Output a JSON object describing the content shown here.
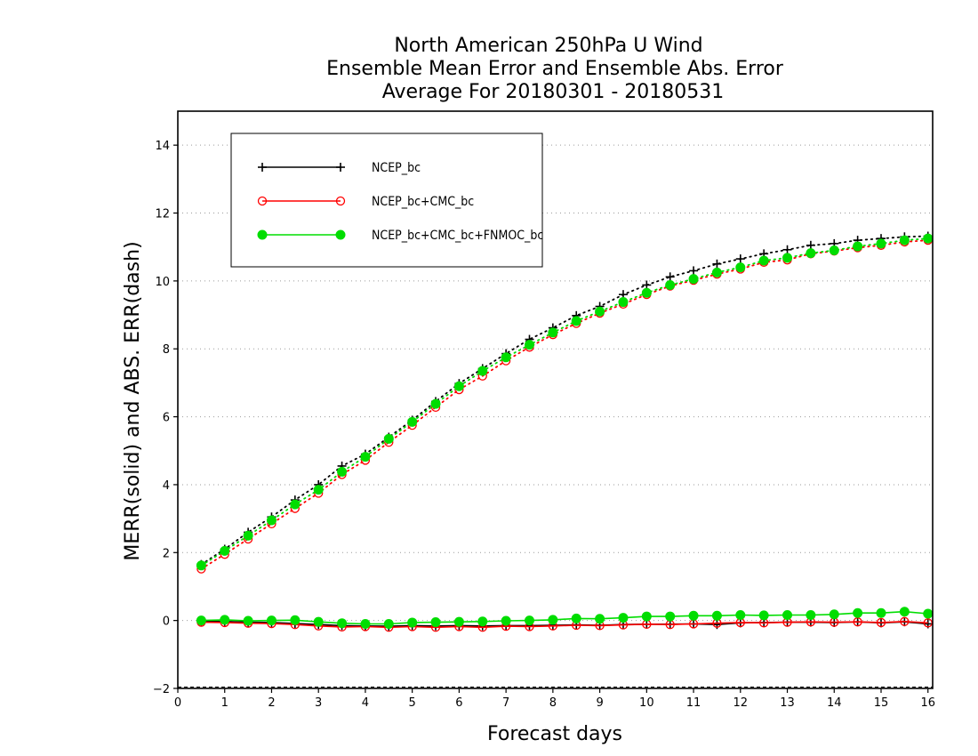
{
  "chart_data": {
    "type": "line",
    "title": [
      "North American 250hPa U Wind",
      "Ensemble Mean Error and Ensemble Abs. Error",
      "Average For 20180301 - 20180531"
    ],
    "xlabel": "Forecast days",
    "ylabel": "MERR(solid) and ABS. ERR(dash)",
    "xlim": [
      0,
      16.1
    ],
    "ylim": [
      -2,
      15
    ],
    "x_ticks": [
      "0",
      "1",
      "2",
      "3",
      "4",
      "5",
      "6",
      "7",
      "8",
      "9",
      "10",
      "11",
      "12",
      "13",
      "14",
      "15",
      "16"
    ],
    "y_ticks": [
      "−2",
      "0",
      "2",
      "4",
      "6",
      "8",
      "10",
      "12",
      "14"
    ],
    "grid": "horizontal dotted",
    "legend_position": "top-left",
    "x": [
      0.5,
      1,
      1.5,
      2,
      2.5,
      3,
      3.5,
      4,
      4.5,
      5,
      5.5,
      6,
      6.5,
      7,
      7.5,
      8,
      8.5,
      9,
      9.5,
      10,
      10.5,
      11,
      11.5,
      12,
      12.5,
      13,
      13.5,
      14,
      14.5,
      15,
      15.5,
      16
    ],
    "series": [
      {
        "name": "NCEP_bc",
        "color": "#000000",
        "marker": "plus",
        "merr": [
          -0.02,
          -0.03,
          -0.05,
          -0.06,
          -0.09,
          -0.12,
          -0.15,
          -0.16,
          -0.17,
          -0.15,
          -0.16,
          -0.15,
          -0.16,
          -0.15,
          -0.15,
          -0.14,
          -0.13,
          -0.14,
          -0.12,
          -0.11,
          -0.11,
          -0.1,
          -0.12,
          -0.07,
          -0.06,
          -0.05,
          -0.05,
          -0.06,
          -0.04,
          -0.07,
          -0.04,
          -0.1
        ],
        "abs_err": [
          1.65,
          2.1,
          2.6,
          3.05,
          3.55,
          4.0,
          4.55,
          4.9,
          5.4,
          5.9,
          6.45,
          6.98,
          7.42,
          7.86,
          8.28,
          8.62,
          8.98,
          9.25,
          9.6,
          9.88,
          10.12,
          10.3,
          10.5,
          10.65,
          10.8,
          10.92,
          11.05,
          11.1,
          11.2,
          11.25,
          11.3,
          11.32
        ]
      },
      {
        "name": "NCEP_bc+CMC_bc",
        "color": "#ff0000",
        "marker": "open-circle",
        "merr": [
          -0.05,
          -0.06,
          -0.08,
          -0.09,
          -0.12,
          -0.16,
          -0.19,
          -0.18,
          -0.2,
          -0.18,
          -0.2,
          -0.18,
          -0.2,
          -0.17,
          -0.18,
          -0.16,
          -0.14,
          -0.15,
          -0.13,
          -0.11,
          -0.12,
          -0.1,
          -0.08,
          -0.06,
          -0.07,
          -0.05,
          -0.04,
          -0.05,
          -0.04,
          -0.06,
          -0.03,
          -0.07
        ],
        "abs_err": [
          1.52,
          1.95,
          2.4,
          2.85,
          3.3,
          3.75,
          4.3,
          4.72,
          5.25,
          5.75,
          6.28,
          6.8,
          7.2,
          7.65,
          8.05,
          8.42,
          8.75,
          9.05,
          9.32,
          9.6,
          9.85,
          10.02,
          10.2,
          10.35,
          10.55,
          10.62,
          10.8,
          10.88,
          10.98,
          11.05,
          11.15,
          11.2
        ]
      },
      {
        "name": "NCEP_bc+CMC_bc+FNMOC_bc",
        "color": "#00dd00",
        "marker": "filled-circle",
        "merr": [
          0.0,
          0.02,
          -0.01,
          0.0,
          0.01,
          -0.04,
          -0.08,
          -0.1,
          -0.1,
          -0.06,
          -0.05,
          -0.04,
          -0.03,
          -0.01,
          0.0,
          0.02,
          0.06,
          0.05,
          0.08,
          0.12,
          0.12,
          0.14,
          0.14,
          0.16,
          0.15,
          0.16,
          0.16,
          0.18,
          0.22,
          0.22,
          0.26,
          0.2
        ],
        "abs_err": [
          1.62,
          2.05,
          2.5,
          2.95,
          3.42,
          3.85,
          4.38,
          4.82,
          5.35,
          5.85,
          6.38,
          6.9,
          7.35,
          7.75,
          8.12,
          8.48,
          8.82,
          9.1,
          9.38,
          9.65,
          9.88,
          10.06,
          10.25,
          10.4,
          10.6,
          10.68,
          10.82,
          10.9,
          11.02,
          11.1,
          11.2,
          11.25
        ]
      }
    ]
  }
}
